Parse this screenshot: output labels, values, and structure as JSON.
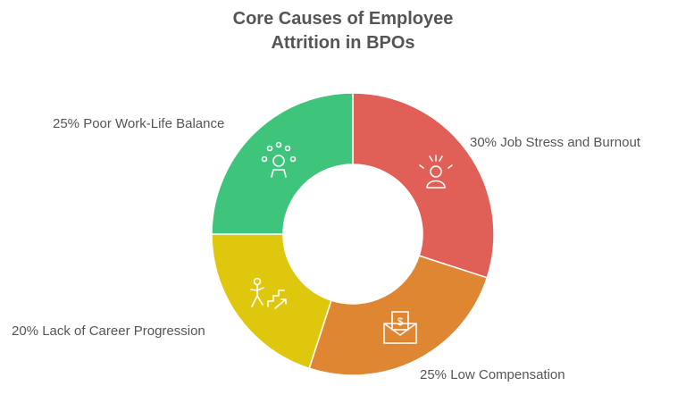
{
  "chart_data": {
    "type": "pie",
    "title_line1": "Core Causes of Employee",
    "title_line2": "Attrition in BPOs",
    "donut": true,
    "slices": [
      {
        "label": "30% Job Stress and Burnout",
        "value": 30,
        "color": "#e05f57",
        "icon": "stressed-person-icon"
      },
      {
        "label": "25% Low Compensation",
        "value": 25,
        "color": "#df8632",
        "icon": "money-envelope-icon"
      },
      {
        "label": "20% Lack of Career Progression",
        "value": 20,
        "color": "#dfc70e",
        "icon": "person-climbing-stairs-icon"
      },
      {
        "label": "25% Poor Work-Life Balance",
        "value": 25,
        "color": "#3fc47c",
        "icon": "person-juggling-icon"
      }
    ]
  }
}
